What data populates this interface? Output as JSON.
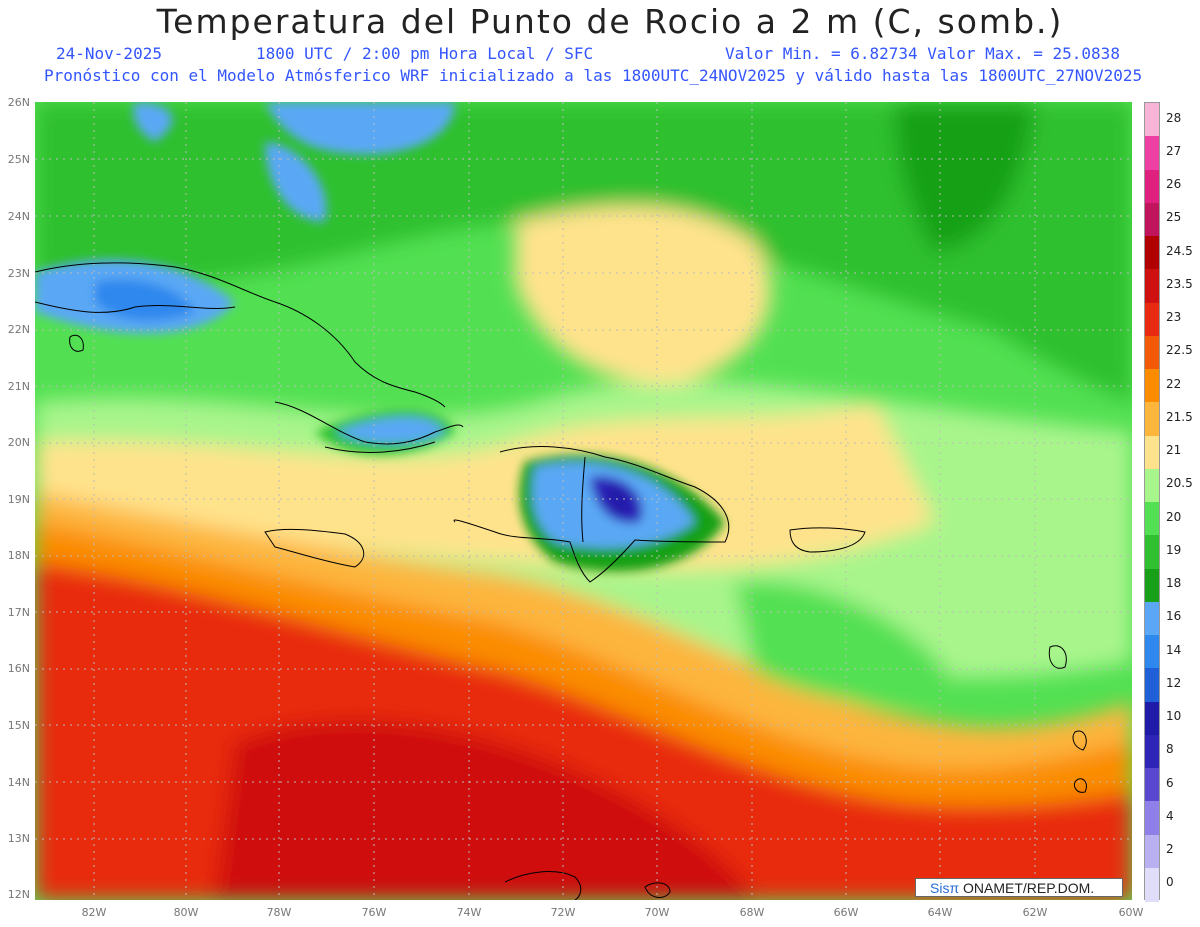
{
  "header": {
    "title": "Temperatura del Punto de Rocio a 2 m (C, somb.)",
    "date": "24-Nov-2025",
    "time": "1800 UTC / 2:00 pm Hora Local / SFC",
    "minmax": "Valor Min. = 6.82734  Valor Max. = 25.0838",
    "forecast": "Pronóstico con el Modelo Atmósferico WRF inicializado a las 1800UTC_24NOV2025 y válido hasta las  1800UTC_27NOV2025"
  },
  "axes": {
    "lat_labels": [
      "26N",
      "25N",
      "24N",
      "23N",
      "22N",
      "21N",
      "20N",
      "19N",
      "18N",
      "17N",
      "16N",
      "15N",
      "14N",
      "13N",
      "12N"
    ],
    "lon_labels": [
      "82W",
      "80W",
      "78W",
      "76W",
      "74W",
      "72W",
      "70W",
      "68W",
      "66W",
      "64W",
      "62W",
      "60W"
    ]
  },
  "colorbar": {
    "labels": [
      "28",
      "27",
      "26",
      "25",
      "24.5",
      "23.5",
      "23",
      "22.5",
      "22",
      "21.5",
      "21",
      "20.5",
      "20",
      "19",
      "18",
      "16",
      "14",
      "12",
      "10",
      "8",
      "6",
      "4",
      "2",
      "0"
    ],
    "colors": [
      "#f7b4d6",
      "#ee3fa5",
      "#e0207f",
      "#c0145d",
      "#b00000",
      "#cf1010",
      "#e82a10",
      "#f25a08",
      "#fb8c00",
      "#fdb53c",
      "#ffe38c",
      "#a8f58c",
      "#52e052",
      "#2fc02f",
      "#18a018",
      "#5aa8f5",
      "#2f88ee",
      "#1f5fd8",
      "#201aa8",
      "#2f24b8",
      "#5a48d0",
      "#8f7fe8",
      "#b9b0f2",
      "#e0ddfa"
    ]
  },
  "credit": {
    "brand": "Sisπ",
    "text": " ONAMET/REP.DOM."
  }
}
